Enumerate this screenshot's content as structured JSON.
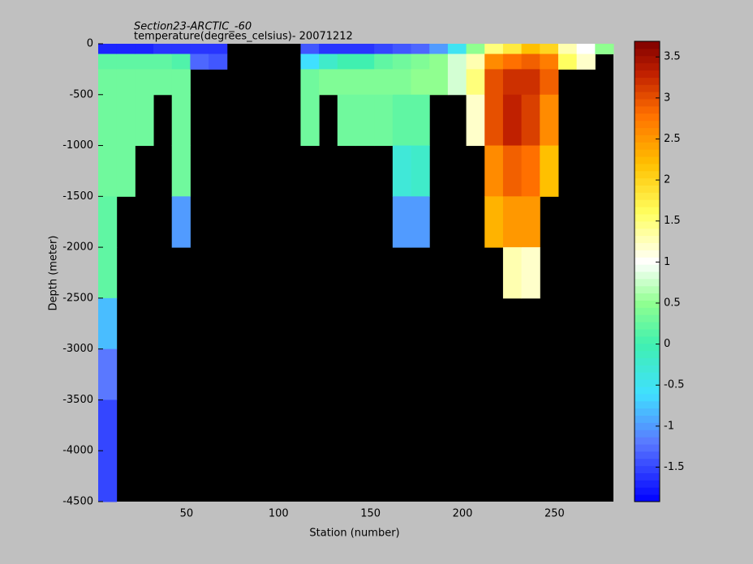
{
  "chart_data": {
    "type": "heatmap",
    "title": "Section23-ARCTIC_-60",
    "subtitle": "temperature(degrees_celsius)- 20071212",
    "xlabel": "Station (number)",
    "ylabel": "Depth (meter)",
    "xlim": [
      2,
      282
    ],
    "ylim": [
      -4500,
      0
    ],
    "xticks": [
      50,
      100,
      150,
      200,
      250
    ],
    "yticks": [
      0,
      -500,
      -1000,
      -1500,
      -2000,
      -2500,
      -3000,
      -3500,
      -4000,
      -4500
    ],
    "x_edges": [
      2,
      12,
      22,
      32,
      42,
      52,
      62,
      72,
      82,
      92,
      102,
      112,
      122,
      132,
      142,
      152,
      162,
      172,
      182,
      192,
      202,
      212,
      222,
      232,
      242,
      252,
      262,
      272,
      282
    ],
    "y_edges": [
      0,
      -100,
      -250,
      -500,
      -1000,
      -1500,
      -2000,
      -2500,
      -3000,
      -3500,
      -4500
    ],
    "values": [
      [
        -1.7,
        0.2,
        0.3,
        0.3,
        0.3,
        0.2,
        0.2,
        -0.8,
        -1.2,
        -1.5
      ],
      [
        -1.7,
        0.2,
        0.3,
        0.3,
        0.3,
        null,
        null,
        null,
        null,
        null
      ],
      [
        -1.7,
        0.2,
        0.3,
        0.3,
        null,
        null,
        null,
        null,
        null,
        null
      ],
      [
        -1.6,
        0.2,
        0.3,
        null,
        null,
        null,
        null,
        null,
        null,
        null
      ],
      [
        -1.6,
        0.1,
        0.3,
        0.3,
        0.3,
        -1.0,
        null,
        null,
        null,
        null
      ],
      [
        -1.6,
        -1.3,
        null,
        null,
        null,
        null,
        null,
        null,
        null,
        null
      ],
      [
        -1.6,
        -1.4,
        null,
        null,
        null,
        null,
        null,
        null,
        null,
        null
      ],
      [
        null,
        null,
        null,
        null,
        null,
        null,
        null,
        null,
        null,
        null
      ],
      [
        null,
        null,
        null,
        null,
        null,
        null,
        null,
        null,
        null,
        null
      ],
      [
        null,
        null,
        null,
        null,
        null,
        null,
        null,
        null,
        null,
        null
      ],
      [
        null,
        null,
        null,
        null,
        null,
        null,
        null,
        null,
        null,
        null
      ],
      [
        -1.4,
        -0.6,
        0.3,
        0.3,
        null,
        null,
        null,
        null,
        null,
        null
      ],
      [
        -1.6,
        -0.2,
        0.4,
        null,
        null,
        null,
        null,
        null,
        null,
        null
      ],
      [
        -1.6,
        0.0,
        0.4,
        0.3,
        null,
        null,
        null,
        null,
        null,
        null
      ],
      [
        -1.6,
        0.0,
        0.4,
        0.3,
        null,
        null,
        null,
        null,
        null,
        null
      ],
      [
        -1.5,
        0.2,
        0.4,
        0.3,
        null,
        null,
        null,
        null,
        null,
        null
      ],
      [
        -1.4,
        0.3,
        0.4,
        0.2,
        -0.3,
        -1.0,
        null,
        null,
        null,
        null
      ],
      [
        -1.3,
        0.4,
        0.5,
        0.2,
        -0.2,
        -1.0,
        null,
        null,
        null,
        null
      ],
      [
        -1.0,
        0.5,
        0.5,
        null,
        null,
        null,
        null,
        null,
        null,
        null
      ],
      [
        -0.5,
        0.8,
        0.8,
        null,
        null,
        null,
        null,
        null,
        null,
        null
      ],
      [
        0.5,
        1.3,
        1.5,
        1.2,
        null,
        null,
        null,
        null,
        null,
        null
      ],
      [
        1.5,
        2.6,
        3.0,
        3.0,
        2.6,
        2.3,
        null,
        null,
        null,
        null
      ],
      [
        1.8,
        2.8,
        3.2,
        3.3,
        2.9,
        2.5,
        1.3,
        null,
        null,
        null
      ],
      [
        2.2,
        2.9,
        3.2,
        3.1,
        2.8,
        2.5,
        1.2,
        null,
        null,
        null
      ],
      [
        2.0,
        2.7,
        2.9,
        2.6,
        2.2,
        null,
        null,
        null,
        null,
        null
      ],
      [
        1.3,
        1.6,
        null,
        null,
        null,
        null,
        null,
        null,
        null,
        null
      ],
      [
        1.0,
        1.2,
        null,
        null,
        null,
        null,
        null,
        null,
        null,
        null
      ],
      [
        0.5,
        null,
        null,
        null,
        null,
        null,
        null,
        null,
        null,
        null
      ]
    ],
    "no_data_color": "#000000",
    "clim": [
      -1.92,
      3.69
    ],
    "cticks": [
      -1.5,
      -1,
      -0.5,
      0,
      0.5,
      1,
      1.5,
      2,
      2.5,
      3,
      3.5
    ],
    "colorscale": [
      {
        "value": -1.92,
        "color": "#0000ff"
      },
      {
        "value": -1.2,
        "color": "#5a78ff"
      },
      {
        "value": -0.6,
        "color": "#40e0ff"
      },
      {
        "value": 0,
        "color": "#40f0b0"
      },
      {
        "value": 0.5,
        "color": "#90ff90"
      },
      {
        "value": 1.0,
        "color": "#ffffff"
      },
      {
        "value": 1.6,
        "color": "#ffff60"
      },
      {
        "value": 2.2,
        "color": "#ffc000"
      },
      {
        "value": 2.8,
        "color": "#ff7000"
      },
      {
        "value": 3.3,
        "color": "#c02000"
      },
      {
        "value": 3.69,
        "color": "#800000"
      }
    ]
  }
}
